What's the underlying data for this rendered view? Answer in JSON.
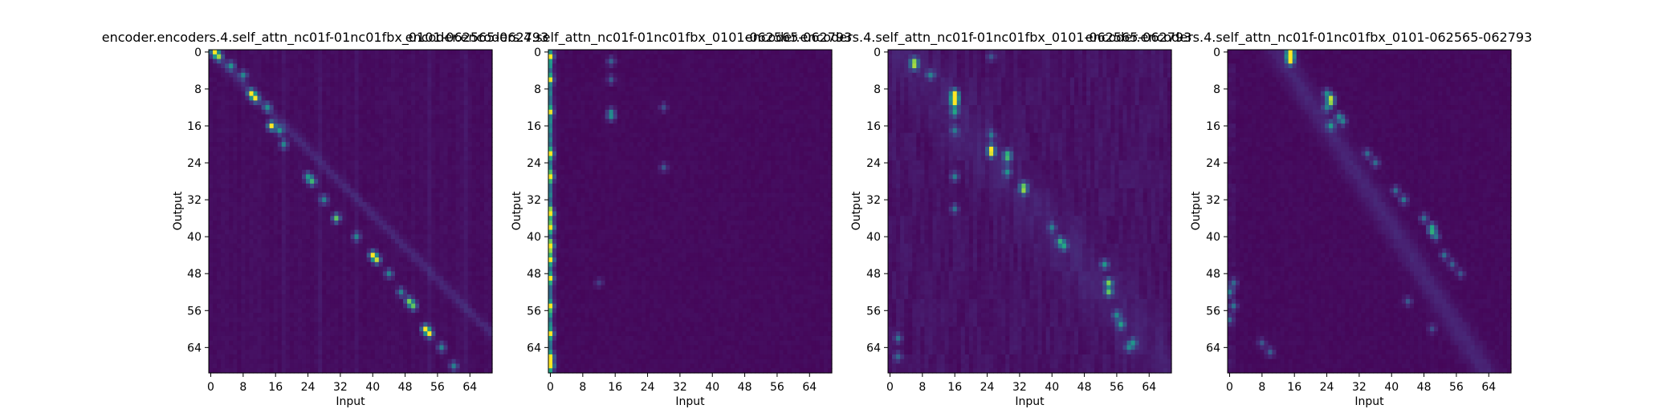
{
  "figure": {
    "background": "#ffffff",
    "cmap": "viridis"
  },
  "chart_data": [
    {
      "type": "heatmap",
      "title": "encoder.encoders.4.self_attn_nc01f-01nc01fbx_0101-062565-062793",
      "xlabel": "Input",
      "ylabel": "Output",
      "xticks": [
        "0",
        "8",
        "16",
        "24",
        "32",
        "40",
        "48",
        "56",
        "64"
      ],
      "yticks": [
        "0",
        "8",
        "16",
        "24",
        "32",
        "40",
        "48",
        "56",
        "64"
      ],
      "grid": false,
      "value_range": [
        0,
        1
      ],
      "pattern": "diagonal",
      "peaks": [
        [
          0,
          1,
          0.9
        ],
        [
          1,
          2,
          0.7
        ],
        [
          3,
          5,
          0.55
        ],
        [
          5,
          8,
          0.5
        ],
        [
          9,
          10,
          0.85
        ],
        [
          10,
          11,
          0.75
        ],
        [
          12,
          14,
          0.5
        ],
        [
          16,
          15,
          1.0
        ],
        [
          17,
          17,
          0.6
        ],
        [
          20,
          18,
          0.5
        ],
        [
          27,
          24,
          0.55
        ],
        [
          28,
          25,
          0.7
        ],
        [
          32,
          28,
          0.5
        ],
        [
          36,
          31,
          0.8
        ],
        [
          40,
          36,
          0.5
        ],
        [
          44,
          40,
          0.9
        ],
        [
          45,
          41,
          0.8
        ],
        [
          48,
          44,
          0.5
        ],
        [
          52,
          47,
          0.5
        ],
        [
          54,
          49,
          0.75
        ],
        [
          55,
          50,
          0.7
        ],
        [
          60,
          53,
          0.95
        ],
        [
          61,
          54,
          0.85
        ],
        [
          64,
          57,
          0.5
        ],
        [
          68,
          60,
          0.5
        ]
      ]
    },
    {
      "type": "heatmap",
      "title": "encoder.encoders.4.self_attn_nc01f-01nc01fbx_0101-062565-062793",
      "xlabel": "Input",
      "ylabel": "Output",
      "xticks": [
        "0",
        "8",
        "16",
        "24",
        "32",
        "40",
        "48",
        "56",
        "64"
      ],
      "yticks": [
        "0",
        "8",
        "16",
        "24",
        "32",
        "40",
        "48",
        "56",
        "64"
      ],
      "grid": false,
      "value_range": [
        0,
        1
      ],
      "pattern": "first-column",
      "peaks": [
        [
          1,
          0,
          0.6
        ],
        [
          6,
          0,
          0.5
        ],
        [
          13,
          0,
          0.5
        ],
        [
          22,
          0,
          0.7
        ],
        [
          27,
          0,
          0.75
        ],
        [
          35,
          0,
          0.95
        ],
        [
          38,
          0,
          1.0
        ],
        [
          42,
          0,
          1.0
        ],
        [
          45,
          0,
          0.9
        ],
        [
          49,
          0,
          0.7
        ],
        [
          55,
          0,
          0.6
        ],
        [
          61,
          0,
          0.7
        ],
        [
          66,
          0,
          0.8
        ],
        [
          68,
          0,
          1.0
        ],
        [
          2,
          15,
          0.35
        ],
        [
          6,
          15,
          0.3
        ],
        [
          13,
          15,
          0.4
        ],
        [
          14,
          15,
          0.45
        ],
        [
          12,
          28,
          0.25
        ],
        [
          25,
          28,
          0.3
        ],
        [
          50,
          12,
          0.2
        ]
      ]
    },
    {
      "type": "heatmap",
      "title": "encoder.encoders.4.self_attn_nc01f-01nc01fbx_0101-062565-062793",
      "xlabel": "Input",
      "ylabel": "Output",
      "xticks": [
        "0",
        "8",
        "16",
        "24",
        "32",
        "40",
        "48",
        "56",
        "64"
      ],
      "yticks": [
        "0",
        "8",
        "16",
        "24",
        "32",
        "40",
        "48",
        "56",
        "64"
      ],
      "grid": false,
      "value_range": [
        0,
        1
      ],
      "pattern": "streaks",
      "peaks": [
        [
          2,
          6,
          0.6
        ],
        [
          3,
          6,
          0.65
        ],
        [
          5,
          10,
          0.45
        ],
        [
          9,
          16,
          0.9
        ],
        [
          10,
          16,
          1.0
        ],
        [
          11,
          16,
          0.85
        ],
        [
          13,
          16,
          0.6
        ],
        [
          17,
          16,
          0.4
        ],
        [
          27,
          16,
          0.45
        ],
        [
          34,
          16,
          0.4
        ],
        [
          1,
          25,
          0.3
        ],
        [
          18,
          25,
          0.4
        ],
        [
          21,
          25,
          0.7
        ],
        [
          22,
          25,
          0.6
        ],
        [
          22,
          29,
          0.5
        ],
        [
          23,
          29,
          0.55
        ],
        [
          26,
          29,
          0.5
        ],
        [
          29,
          33,
          0.55
        ],
        [
          30,
          33,
          0.6
        ],
        [
          38,
          40,
          0.4
        ],
        [
          41,
          42,
          0.6
        ],
        [
          42,
          43,
          0.55
        ],
        [
          46,
          53,
          0.6
        ],
        [
          50,
          54,
          0.8
        ],
        [
          52,
          54,
          0.75
        ],
        [
          57,
          56,
          0.5
        ],
        [
          59,
          57,
          0.6
        ],
        [
          63,
          60,
          0.5
        ],
        [
          64,
          59,
          0.45
        ],
        [
          62,
          2,
          0.4
        ],
        [
          66,
          2,
          0.35
        ]
      ]
    },
    {
      "type": "heatmap",
      "title": "encoder.encoders.4.self_attn_nc01f-01nc01fbx_0101-062565-062793",
      "xlabel": "Input",
      "ylabel": "Output",
      "xticks": [
        "0",
        "8",
        "16",
        "24",
        "32",
        "40",
        "48",
        "56",
        "64"
      ],
      "yticks": [
        "0",
        "8",
        "16",
        "24",
        "32",
        "40",
        "48",
        "56",
        "64"
      ],
      "grid": false,
      "value_range": [
        0,
        1
      ],
      "pattern": "diagonal-late",
      "peaks": [
        [
          0,
          15,
          0.95
        ],
        [
          1,
          15,
          0.9
        ],
        [
          2,
          15,
          0.7
        ],
        [
          9,
          24,
          0.5
        ],
        [
          10,
          25,
          0.65
        ],
        [
          11,
          25,
          0.6
        ],
        [
          12,
          24,
          0.45
        ],
        [
          16,
          25,
          0.55
        ],
        [
          14,
          27,
          0.5
        ],
        [
          15,
          28,
          0.45
        ],
        [
          22,
          34,
          0.4
        ],
        [
          24,
          36,
          0.4
        ],
        [
          30,
          41,
          0.4
        ],
        [
          32,
          43,
          0.45
        ],
        [
          36,
          48,
          0.4
        ],
        [
          38,
          50,
          0.55
        ],
        [
          39,
          50,
          0.5
        ],
        [
          40,
          51,
          0.4
        ],
        [
          44,
          53,
          0.4
        ],
        [
          46,
          55,
          0.35
        ],
        [
          48,
          57,
          0.3
        ],
        [
          50,
          1,
          0.35
        ],
        [
          52,
          0,
          0.45
        ],
        [
          55,
          1,
          0.4
        ],
        [
          58,
          0,
          0.35
        ],
        [
          63,
          8,
          0.3
        ],
        [
          65,
          10,
          0.35
        ],
        [
          54,
          44,
          0.3
        ],
        [
          60,
          50,
          0.25
        ]
      ]
    }
  ]
}
